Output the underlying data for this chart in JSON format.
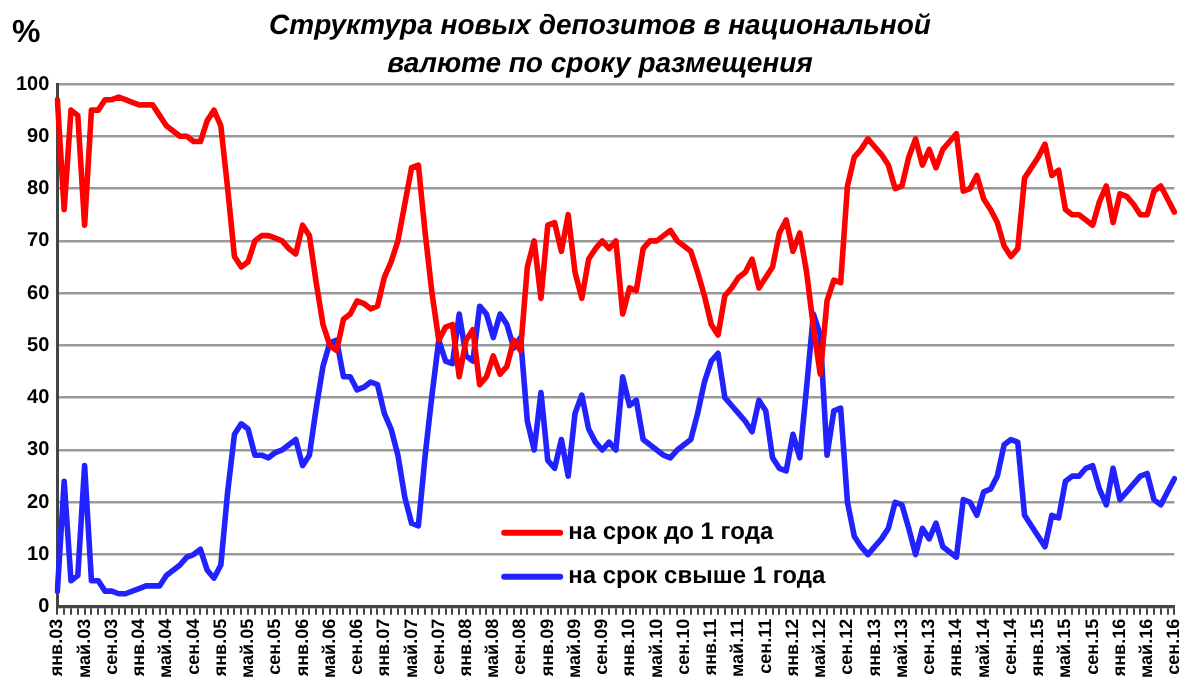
{
  "chart_data": {
    "type": "line",
    "title": "Структура новых депозитов в национальной валюте по сроку размещения",
    "ylabel": "%",
    "categories": [
      "янв.03",
      null,
      null,
      null,
      "май.03",
      null,
      null,
      null,
      "сен.03",
      null,
      null,
      null,
      "янв.04",
      null,
      null,
      null,
      "май.04",
      null,
      null,
      null,
      "сен.04",
      null,
      null,
      null,
      "янв.05",
      null,
      null,
      null,
      "май.05",
      null,
      null,
      null,
      "сен.05",
      null,
      null,
      null,
      "янв.06",
      null,
      null,
      null,
      "май.06",
      null,
      null,
      null,
      "сен.06",
      null,
      null,
      null,
      "янв.07",
      null,
      null,
      null,
      "май.07",
      null,
      null,
      null,
      "сен.07",
      null,
      null,
      null,
      "янв.08",
      null,
      null,
      null,
      "май.08",
      null,
      null,
      null,
      "сен.08",
      null,
      null,
      null,
      "янв.09",
      null,
      null,
      null,
      "май.09",
      null,
      null,
      null,
      "сен.09",
      null,
      null,
      null,
      "янв.10",
      null,
      null,
      null,
      "май.10",
      null,
      null,
      null,
      "сен.10",
      null,
      null,
      null,
      "янв.11",
      null,
      null,
      null,
      "май.11",
      null,
      null,
      null,
      "сен.11",
      null,
      null,
      null,
      "янв.12",
      null,
      null,
      null,
      "май.12",
      null,
      null,
      null,
      "сен.12",
      null,
      null,
      null,
      "янв.13",
      null,
      null,
      null,
      "май.13",
      null,
      null,
      null,
      "сен.13",
      null,
      null,
      null,
      "янв.14",
      null,
      null,
      null,
      "май.14",
      null,
      null,
      null,
      "сен.14",
      null,
      null,
      null,
      "янв.15",
      null,
      null,
      null,
      "май.15",
      null,
      null,
      null,
      "сен.15",
      null,
      null,
      null,
      "янв.16",
      null,
      null,
      null,
      "май.16",
      null,
      null,
      null,
      "сен.16"
    ],
    "series": [
      {
        "name": "на срок до 1 года",
        "color": "#ff0000",
        "values": [
          97,
          76,
          95,
          94,
          73,
          95,
          95,
          97,
          97,
          97.5,
          97,
          96.5,
          96,
          96,
          96,
          94,
          92,
          91,
          90,
          90,
          89,
          89,
          93,
          95,
          92,
          80,
          67,
          65,
          66,
          70,
          71,
          71,
          70.5,
          70,
          68.5,
          67.5,
          73,
          71,
          62,
          54,
          50,
          49,
          55,
          56,
          58.5,
          58,
          57,
          57.5,
          63,
          66,
          70,
          77,
          84,
          84.5,
          71.5,
          60,
          51,
          53.5,
          54,
          44,
          51,
          53,
          42.5,
          44,
          48,
          44.5,
          46,
          51,
          49,
          65,
          70,
          59,
          73,
          73.5,
          68,
          75,
          64,
          59,
          66.5,
          68.5,
          70,
          68.5,
          70,
          56,
          61,
          60.5,
          68.5,
          70,
          70,
          71,
          72,
          70,
          69,
          68,
          64,
          59.5,
          54,
          52,
          59.5,
          61,
          63,
          64,
          66.5,
          61,
          63,
          65,
          71.5,
          74,
          68,
          71.5,
          64,
          53.5,
          44.5,
          58.5,
          62.5,
          62,
          80.5,
          86,
          87.5,
          89.5,
          88,
          86.5,
          84.5,
          80,
          80.5,
          86,
          89.5,
          84.5,
          87.5,
          84,
          87.5,
          89,
          90.5,
          79.5,
          80,
          82.5,
          78,
          76,
          73.5,
          69,
          67,
          68.5,
          82,
          84,
          86,
          88.5,
          82.5,
          83.5,
          76,
          75,
          75,
          74,
          73,
          77.5,
          80.5,
          73.5,
          79,
          78.5,
          77,
          75,
          75,
          79.5,
          80.5,
          78,
          75.5
        ]
      },
      {
        "name": "на срок свыше 1 года",
        "color": "#2222ff",
        "values": [
          3,
          24,
          5,
          6,
          27,
          5,
          5,
          3,
          3,
          2.5,
          2.5,
          3,
          3.5,
          4,
          4,
          4,
          6,
          7,
          8,
          9.5,
          10,
          11,
          7,
          5.5,
          8,
          22,
          33,
          35,
          34,
          29,
          29,
          28.5,
          29.5,
          30,
          31,
          32,
          27,
          29,
          38,
          46,
          50.5,
          51,
          44,
          44,
          41.5,
          42,
          43,
          42.5,
          37,
          34,
          29,
          21,
          16,
          15.5,
          29,
          40.5,
          51,
          47,
          46.5,
          56,
          48,
          47,
          57.5,
          56,
          51.5,
          56,
          54,
          49.5,
          51.5,
          35.5,
          30,
          41,
          28,
          26.5,
          32,
          25,
          37,
          40.5,
          34,
          31.5,
          30,
          31.5,
          30,
          44,
          38.5,
          39.5,
          32,
          31,
          30,
          29,
          28.5,
          30,
          31,
          32,
          37,
          43,
          47,
          48.5,
          40,
          38.5,
          37,
          35.5,
          33.5,
          39.5,
          37.5,
          28.5,
          26.5,
          26,
          33,
          28.5,
          42,
          56,
          52,
          29,
          37.5,
          38,
          20,
          13.5,
          11.5,
          10,
          11.5,
          13,
          15,
          20,
          19.5,
          15,
          10,
          15,
          13,
          16,
          11.5,
          10.5,
          9.5,
          20.5,
          20,
          17.5,
          22,
          22.5,
          25,
          31,
          32,
          31.5,
          17.5,
          15.5,
          13.5,
          11.5,
          17.5,
          17,
          24,
          25,
          25,
          26.5,
          27,
          22.5,
          19.5,
          26.5,
          20.5,
          22,
          23.5,
          25,
          25.5,
          20.5,
          19.5,
          22,
          24.5
        ]
      }
    ],
    "ylim": [
      0,
      100
    ],
    "yticks": [
      0,
      10,
      20,
      30,
      40,
      50,
      60,
      70,
      80,
      90,
      100
    ],
    "grid": "y",
    "legend": "bottom",
    "marker": "none",
    "line_style": "solid"
  }
}
